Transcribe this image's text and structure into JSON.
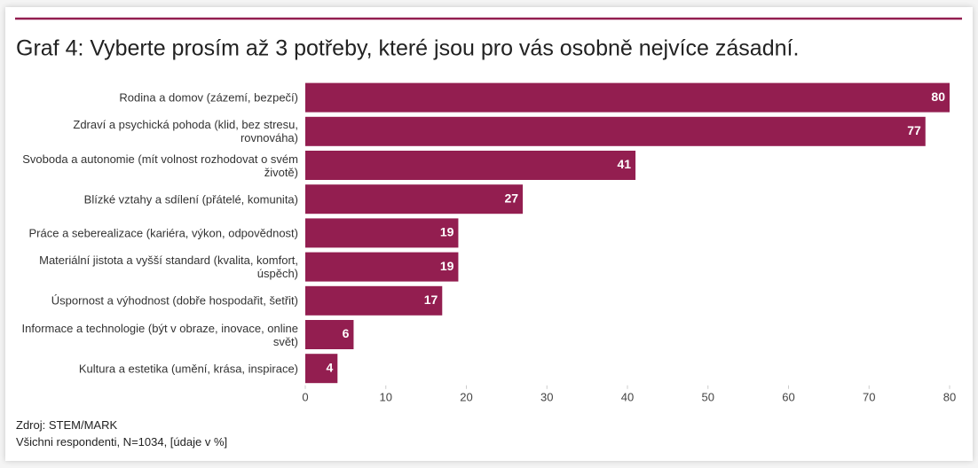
{
  "chart_data": {
    "type": "bar",
    "orientation": "horizontal",
    "title": "Graf 4: Vyberte prosím až 3 potřeby, které jsou pro vás osobně nejvíce zásadní.",
    "categories": [
      "Rodina a domov (zázemí, bezpečí)",
      "Zdraví a psychická pohoda (klid, bez stresu, rovnováha)",
      "Svoboda a autonomie (mít volnost rozhodovat o svém životě)",
      "Blízké vztahy a sdílení (přátelé, komunita)",
      "Práce a seberealizace (kariéra, výkon, odpovědnost)",
      "Materiální jistota a vyšší standard (kvalita, komfort, úspěch)",
      "Úspornost a výhodnost (dobře hospodařit, šetřit)",
      "Informace a technologie (být v obraze, inovace, online svět)",
      "Kultura a estetika (umění, krása, inspirace)"
    ],
    "values": [
      80,
      77,
      41,
      27,
      19,
      19,
      17,
      6,
      4
    ],
    "color": "#931e50",
    "xlim": [
      0,
      80
    ],
    "xticks": [
      0,
      10,
      20,
      30,
      40,
      50,
      60,
      70,
      80
    ],
    "notes": [
      "Zdroj: STEM/MARK",
      "Všichni respondenti, N=1034, [údaje v %]"
    ]
  }
}
